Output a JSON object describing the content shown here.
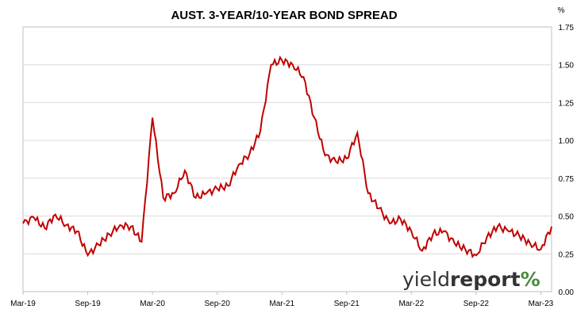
{
  "chart_data": {
    "type": "line",
    "title": "AUST. 3-YEAR/10-YEAR BOND SPREAD",
    "y_unit": "%",
    "xlabel": "",
    "ylabel": "",
    "ylim": [
      0.0,
      1.75
    ],
    "y_ticks": [
      "0.00",
      "0.25",
      "0.50",
      "0.75",
      "1.00",
      "1.25",
      "1.50",
      "1.75"
    ],
    "x_ticks": [
      "Mar-19",
      "Sep-19",
      "Mar-20",
      "Sep-20",
      "Mar-21",
      "Sep-21",
      "Mar-22",
      "Sep-22",
      "Mar-23"
    ],
    "x_range": [
      "2019-03",
      "2023-04"
    ],
    "grid": "horizontal",
    "legend": "none",
    "line_color": "#c00000",
    "series": [
      {
        "values": [
          [
            "2019-03",
            0.45
          ],
          [
            "2019-04",
            0.49
          ],
          [
            "2019-05",
            0.42
          ],
          [
            "2019-06",
            0.51
          ],
          [
            "2019-07",
            0.44
          ],
          [
            "2019-08",
            0.4
          ],
          [
            "2019-09",
            0.24
          ],
          [
            "2019-10",
            0.31
          ],
          [
            "2019-11",
            0.38
          ],
          [
            "2019-12",
            0.44
          ],
          [
            "2020-01",
            0.43
          ],
          [
            "2020-02",
            0.33
          ],
          [
            "2020-03",
            1.15
          ],
          [
            "2020-04",
            0.62
          ],
          [
            "2020-05",
            0.65
          ],
          [
            "2020-06",
            0.8
          ],
          [
            "2020-07",
            0.62
          ],
          [
            "2020-08",
            0.65
          ],
          [
            "2020-09",
            0.68
          ],
          [
            "2020-10",
            0.7
          ],
          [
            "2020-11",
            0.84
          ],
          [
            "2020-12",
            0.91
          ],
          [
            "2021-01",
            1.06
          ],
          [
            "2021-02",
            1.5
          ],
          [
            "2021-03",
            1.53
          ],
          [
            "2021-04",
            1.5
          ],
          [
            "2021-05",
            1.42
          ],
          [
            "2021-06",
            1.15
          ],
          [
            "2021-07",
            0.9
          ],
          [
            "2021-08",
            0.86
          ],
          [
            "2021-09",
            0.88
          ],
          [
            "2021-10",
            1.05
          ],
          [
            "2021-11",
            0.65
          ],
          [
            "2021-12",
            0.55
          ],
          [
            "2022-01",
            0.45
          ],
          [
            "2022-02",
            0.48
          ],
          [
            "2022-03",
            0.4
          ],
          [
            "2022-04",
            0.27
          ],
          [
            "2022-05",
            0.38
          ],
          [
            "2022-06",
            0.4
          ],
          [
            "2022-07",
            0.32
          ],
          [
            "2022-08",
            0.28
          ],
          [
            "2022-09",
            0.24
          ],
          [
            "2022-10",
            0.36
          ],
          [
            "2022-11",
            0.43
          ],
          [
            "2022-12",
            0.4
          ],
          [
            "2023-01",
            0.37
          ],
          [
            "2023-02",
            0.32
          ],
          [
            "2023-03",
            0.28
          ],
          [
            "2023-04",
            0.43
          ]
        ]
      }
    ]
  },
  "watermark": {
    "word_part1": "yield",
    "word_part2": "report",
    "symbol": "%",
    "color_dark": "#333333",
    "color_green": "#4a8a3c",
    "color_red": "#c00000"
  }
}
